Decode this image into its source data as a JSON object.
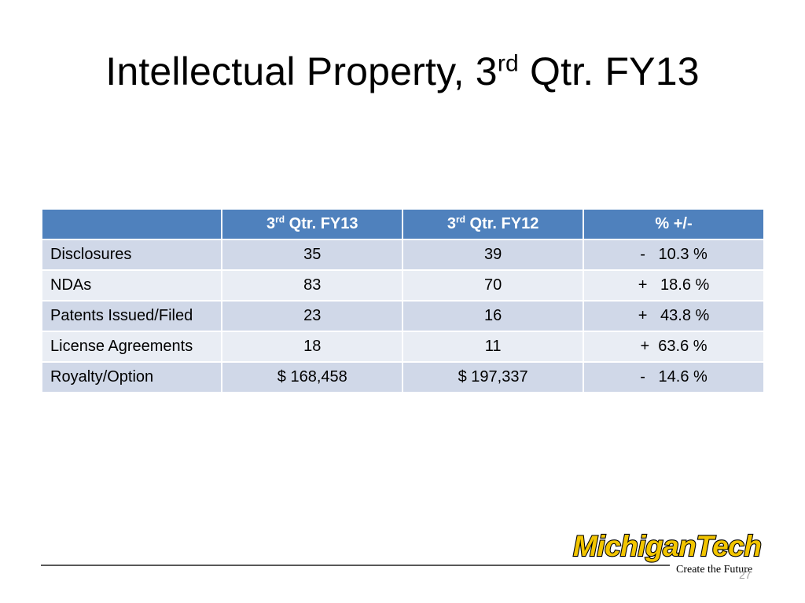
{
  "title": {
    "main": "Intellectual Property, 3",
    "sup": "rd",
    "tail": " Qtr. FY13"
  },
  "table": {
    "headers": [
      {
        "text": "",
        "sup": "",
        "tail": ""
      },
      {
        "text": "3",
        "sup": "rd",
        "tail": " Qtr. FY13"
      },
      {
        "text": "3",
        "sup": "rd",
        "tail": " Qtr. FY12"
      },
      {
        "text": "% +/-",
        "sup": "",
        "tail": ""
      }
    ],
    "rows": [
      {
        "label": "Disclosures",
        "fy13": "35",
        "fy12": "39",
        "change": "-   10.3 %"
      },
      {
        "label": "NDAs",
        "fy13": "83",
        "fy12": "70",
        "change": "+   18.6 %"
      },
      {
        "label": "Patents Issued/Filed",
        "fy13": "23",
        "fy12": "16",
        "change": "+   43.8 %"
      },
      {
        "label": "License Agreements",
        "fy13": "18",
        "fy12": "11",
        "change": "+  63.6 %"
      },
      {
        "label": "Royalty/Option",
        "fy13": "$ 168,458",
        "fy12": "$ 197,337",
        "change": "-   14.6 %"
      }
    ]
  },
  "logo": {
    "name": "MichiganTech",
    "tagline": "Create the Future"
  },
  "slide_number": "27",
  "colors": {
    "header_bg": "#4f81bd",
    "row_odd": "#d0d8e8",
    "row_even": "#e9edf4",
    "logo_gold": "#f2c500"
  }
}
